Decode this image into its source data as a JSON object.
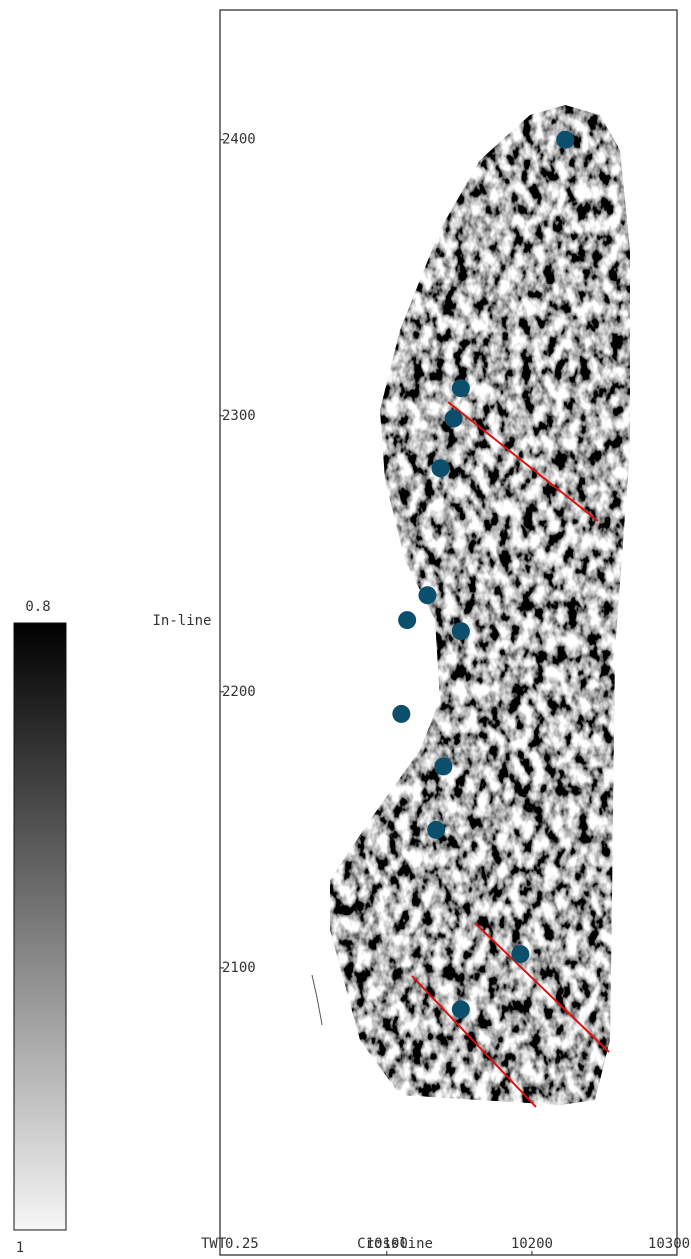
{
  "chart_data": {
    "type": "scatter",
    "y_label": "In-line",
    "x_label": "Crossline",
    "time_label": "TWT",
    "time_value": "0.25",
    "xlim": [
      9985,
      10300
    ],
    "xticks": [
      10100,
      10200,
      10300
    ],
    "ylim": [
      1996,
      2447
    ],
    "yticks": [
      2100,
      2200,
      2300,
      2400
    ],
    "colorbar": {
      "top": "0.8",
      "bottom": "1"
    },
    "series": [
      {
        "color": "#0b4f6c",
        "x": [
          10223,
          10151,
          10146,
          10137,
          10128,
          10114,
          10151,
          10110,
          10139,
          10134,
          10192,
          10151
        ],
        "values": [
          2400,
          2310,
          2299,
          2281,
          2235,
          2226,
          2222,
          2192,
          2173,
          2150,
          2105,
          2085
        ]
      }
    ]
  }
}
